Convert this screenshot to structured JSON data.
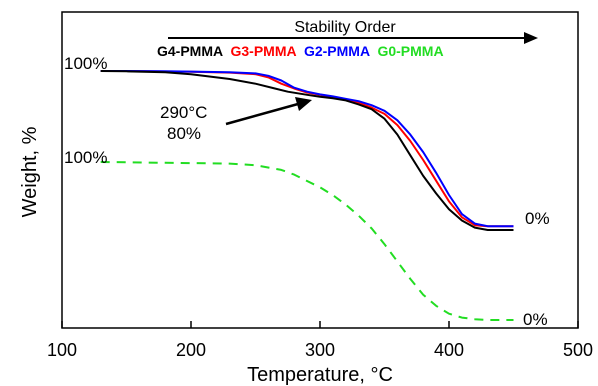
{
  "chart_data": {
    "type": "line",
    "title": "",
    "xlabel": "Temperature, °C",
    "ylabel": "Weight, %",
    "xlim": [
      100,
      500
    ],
    "xticks": [
      100,
      200,
      300,
      400,
      500
    ],
    "yticks_labels": [],
    "grid": false,
    "stability_order": {
      "title": "Stability Order",
      "labels": [
        {
          "text": "G4-PMMA",
          "color": "#000000"
        },
        {
          "text": "G3-PMMA",
          "color": "#ff0000"
        },
        {
          "text": "G2-PMMA",
          "color": "#0000ff"
        },
        {
          "text": "G0-PMMA",
          "color": "#22dd22"
        }
      ]
    },
    "annotations": {
      "top_start": "100%",
      "top_end": "0%",
      "bottom_start": "100%",
      "bottom_end": "0%",
      "point_temp": "290°C",
      "point_weight": "80%"
    },
    "series": [
      {
        "color": "#000000",
        "dash": false,
        "x": [
          130,
          150,
          180,
          200,
          230,
          250,
          265,
          275,
          290,
          300,
          310,
          320,
          330,
          340,
          350,
          360,
          370,
          380,
          390,
          400,
          410,
          420,
          430,
          440,
          450
        ],
        "y": [
          100,
          99.8,
          99.2,
          98,
          95,
          92,
          89,
          87,
          85,
          83.8,
          82.8,
          81.5,
          79,
          76,
          70,
          60,
          47,
          34,
          23,
          13,
          6,
          1.5,
          0,
          0,
          0
        ]
      },
      {
        "color": "#ff0000",
        "dash": false,
        "x": [
          130,
          150,
          180,
          200,
          230,
          250,
          260,
          270,
          280,
          290,
          300,
          310,
          320,
          330,
          340,
          350,
          360,
          370,
          380,
          390,
          400,
          410,
          420,
          430,
          440,
          450
        ],
        "y": [
          100,
          100,
          99.7,
          99.5,
          99,
          98,
          96,
          92,
          89,
          86.5,
          85,
          83.5,
          82,
          80,
          77,
          73,
          66,
          56,
          44,
          31,
          18,
          8,
          3,
          2.4,
          2.4,
          2.4
        ]
      },
      {
        "color": "#0000ff",
        "dash": false,
        "x": [
          130,
          150,
          180,
          200,
          230,
          250,
          260,
          270,
          280,
          290,
          300,
          310,
          320,
          330,
          340,
          350,
          360,
          370,
          380,
          390,
          400,
          410,
          420,
          430,
          440,
          450
        ],
        "y": [
          100,
          100,
          99.8,
          99.6,
          99.2,
          98.5,
          97,
          94,
          89.5,
          87,
          85.3,
          84,
          82.5,
          81,
          78.5,
          75,
          69,
          60,
          49,
          36,
          22,
          10,
          4,
          2.4,
          2.4,
          2.4
        ]
      },
      {
        "color": "#22dd22",
        "dash": true,
        "x": [
          130,
          150,
          180,
          200,
          230,
          250,
          270,
          280,
          290,
          300,
          310,
          320,
          330,
          340,
          350,
          360,
          370,
          380,
          390,
          400,
          410,
          420,
          430,
          440,
          450
        ],
        "y": [
          100,
          99.8,
          99.5,
          99.3,
          99,
          98,
          95,
          92,
          88,
          84,
          79,
          73,
          66,
          58,
          48,
          37,
          26,
          16,
          9,
          4,
          1.5,
          0.5,
          0,
          0,
          0
        ]
      }
    ]
  }
}
